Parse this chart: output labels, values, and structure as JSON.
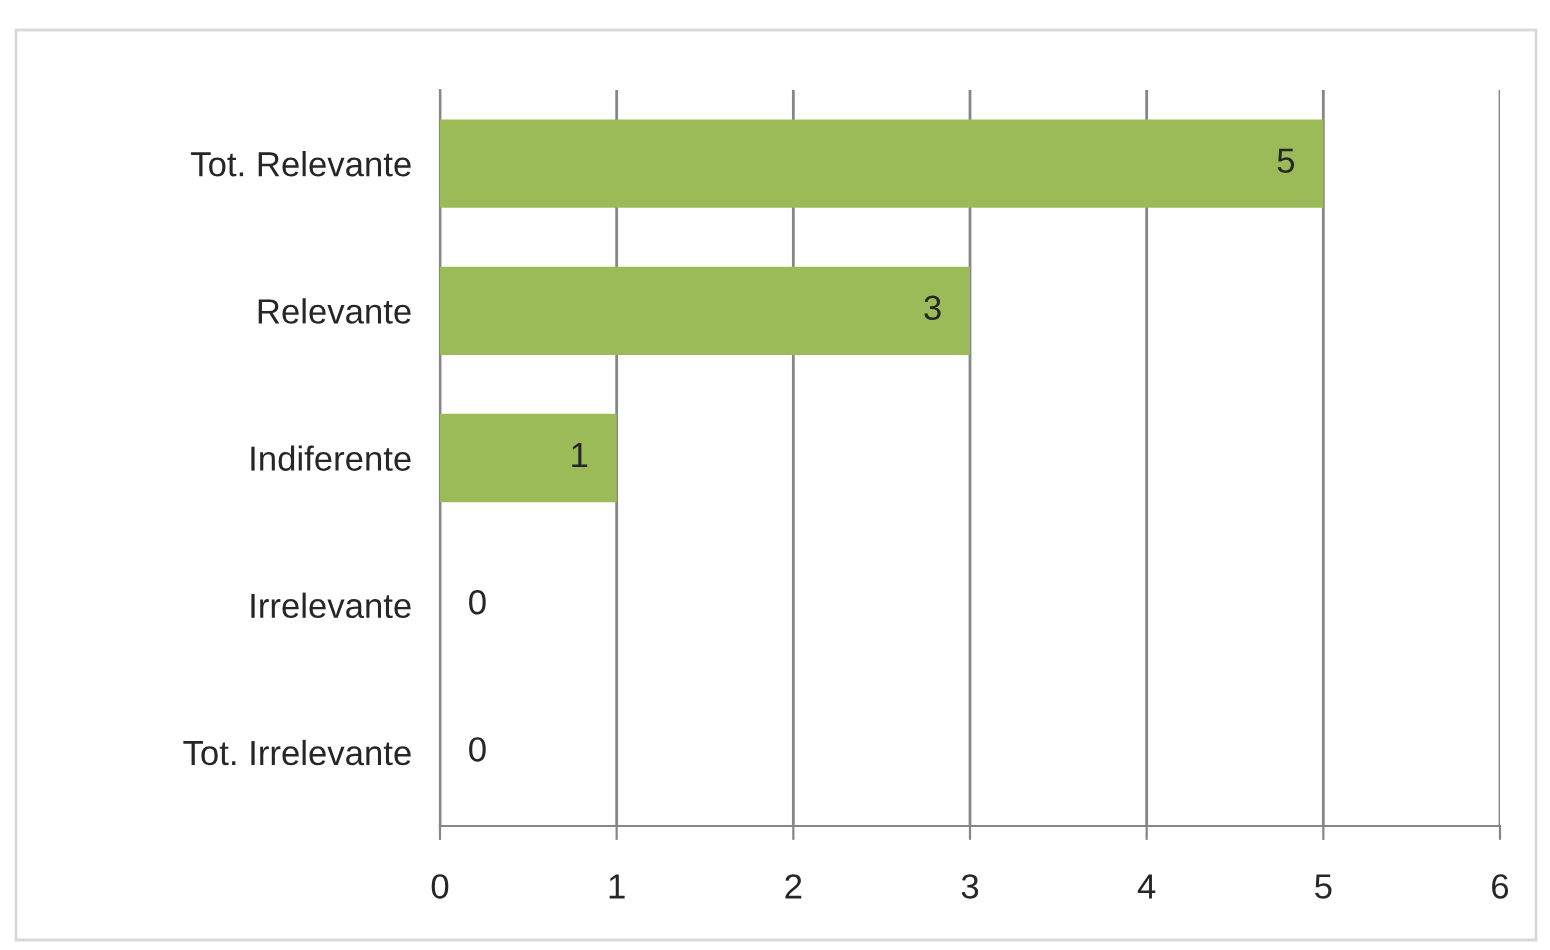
{
  "chart_data": {
    "type": "bar",
    "orientation": "horizontal",
    "categories": [
      "Tot. Relevante",
      "Relevante",
      "Indiferente",
      "Irrelevante",
      "Tot. Irrelevante"
    ],
    "values": [
      5,
      3,
      1,
      0,
      0
    ],
    "color": "#9bbb59",
    "xlim": [
      0,
      6
    ],
    "xticks": [
      0,
      1,
      2,
      3,
      4,
      5,
      6
    ],
    "grid": "x",
    "data_labels": true,
    "legend": false
  }
}
